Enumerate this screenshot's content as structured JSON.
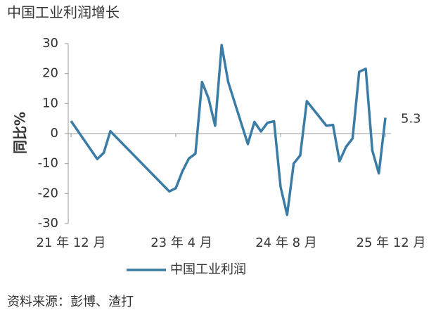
{
  "chart_data": {
    "type": "line",
    "title": "中国工业利润增长",
    "y_label": "同比%",
    "source": "资料来源：彭博、渣打",
    "x": [
      0,
      4,
      5,
      6,
      15,
      16,
      17,
      18,
      19,
      20,
      21,
      22,
      23,
      24,
      27,
      28,
      29,
      30,
      31,
      32,
      33,
      34,
      35,
      36,
      39,
      40,
      41,
      42,
      43,
      44,
      45,
      46,
      47,
      48
    ],
    "series": [
      {
        "name": "中国工业利润",
        "color": "#3a7ca5",
        "values": [
          4.2,
          -8.5,
          -6.4,
          0.8,
          -19.3,
          -18.2,
          -12.6,
          -8.3,
          -6.7,
          17.2,
          11.7,
          2.6,
          29.5,
          17.2,
          -3.5,
          3.9,
          0.7,
          3.6,
          4.1,
          -17.8,
          -27.1,
          -10.0,
          -7.3,
          10.8,
          2.6,
          2.9,
          -9.2,
          -4.4,
          -1.6,
          20.6,
          21.6,
          -5.6,
          -13.3,
          5.3
        ]
      }
    ],
    "xlim": [
      0,
      48
    ],
    "xticks": [
      {
        "value": 0,
        "label": "21 年 12 月"
      },
      {
        "value": 16,
        "label": "23 年 4 月"
      },
      {
        "value": 32,
        "label": "24 年 8 月"
      },
      {
        "value": 48,
        "label": "25 年 12 月"
      }
    ],
    "ylim": [
      -30,
      30
    ],
    "yticks": [
      -30,
      -20,
      -10,
      0,
      10,
      20,
      30
    ],
    "grid": false
  }
}
